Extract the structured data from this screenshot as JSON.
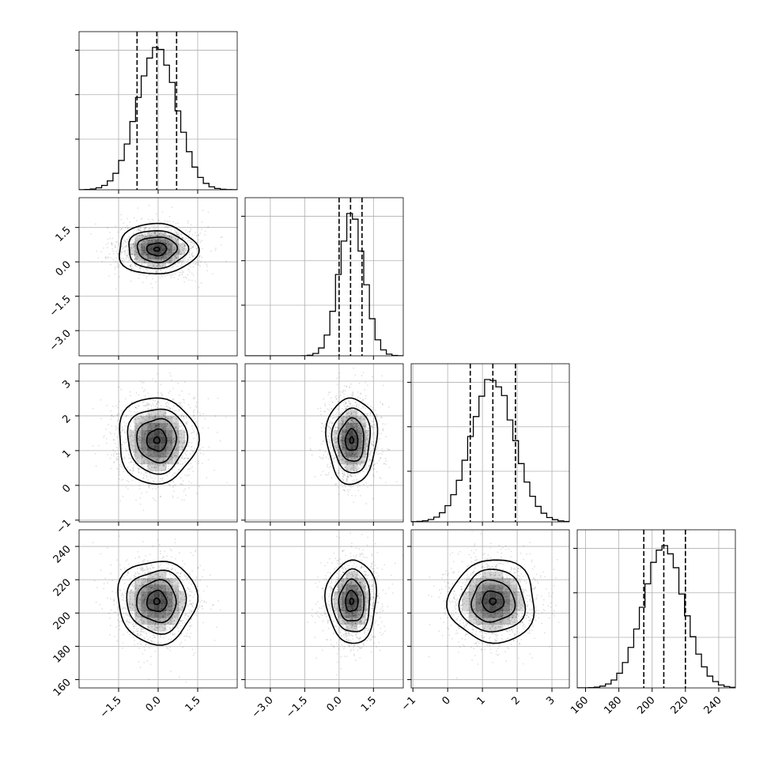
{
  "chart_data": {
    "type": "corner",
    "grid": true,
    "parameters": [
      {
        "id": "p0",
        "range": [
          -3.0,
          3.0
        ],
        "ticks": [
          -1.5,
          0.0,
          1.5
        ],
        "tick_labels": [
          "−1.5",
          "0.0",
          "1.5"
        ],
        "quantiles": [
          -0.8,
          -0.05,
          0.7
        ],
        "center": -0.05,
        "sigma": 0.75,
        "hist_ymax": 1.0
      },
      {
        "id": "p1",
        "range": [
          -4.1,
          2.8
        ],
        "ticks": [
          -3.0,
          -1.5,
          0.0,
          1.5
        ],
        "tick_labels": [
          "−3.0",
          "−1.5",
          "0.0",
          "1.5"
        ],
        "quantiles": [
          0.0,
          0.5,
          1.0
        ],
        "center": 0.55,
        "sigma": 0.55,
        "hist_ymax": 1.0
      },
      {
        "id": "p2",
        "range": [
          -1.05,
          3.5
        ],
        "ticks": [
          -1,
          0,
          1,
          2,
          3
        ],
        "tick_labels": [
          "−1",
          "0",
          "1",
          "2",
          "3"
        ],
        "quantiles": [
          0.65,
          1.3,
          1.95
        ],
        "center": 1.3,
        "sigma": 0.62,
        "hist_ymax": 1.0
      },
      {
        "id": "p3",
        "range": [
          155,
          250
        ],
        "ticks": [
          160,
          180,
          200,
          220,
          240
        ],
        "tick_labels": [
          "160",
          "180",
          "200",
          "220",
          "240"
        ],
        "quantiles": [
          195,
          207,
          220
        ],
        "center": 207,
        "sigma": 12.5,
        "hist_ymax": 1.0
      }
    ],
    "correlations": {
      "p1_p0": 0.0,
      "p2_p0": 0.0,
      "p2_p1": 0.0,
      "p3_p0": 0.0,
      "p3_p1": 0.0,
      "p3_p2": 0.0
    }
  }
}
